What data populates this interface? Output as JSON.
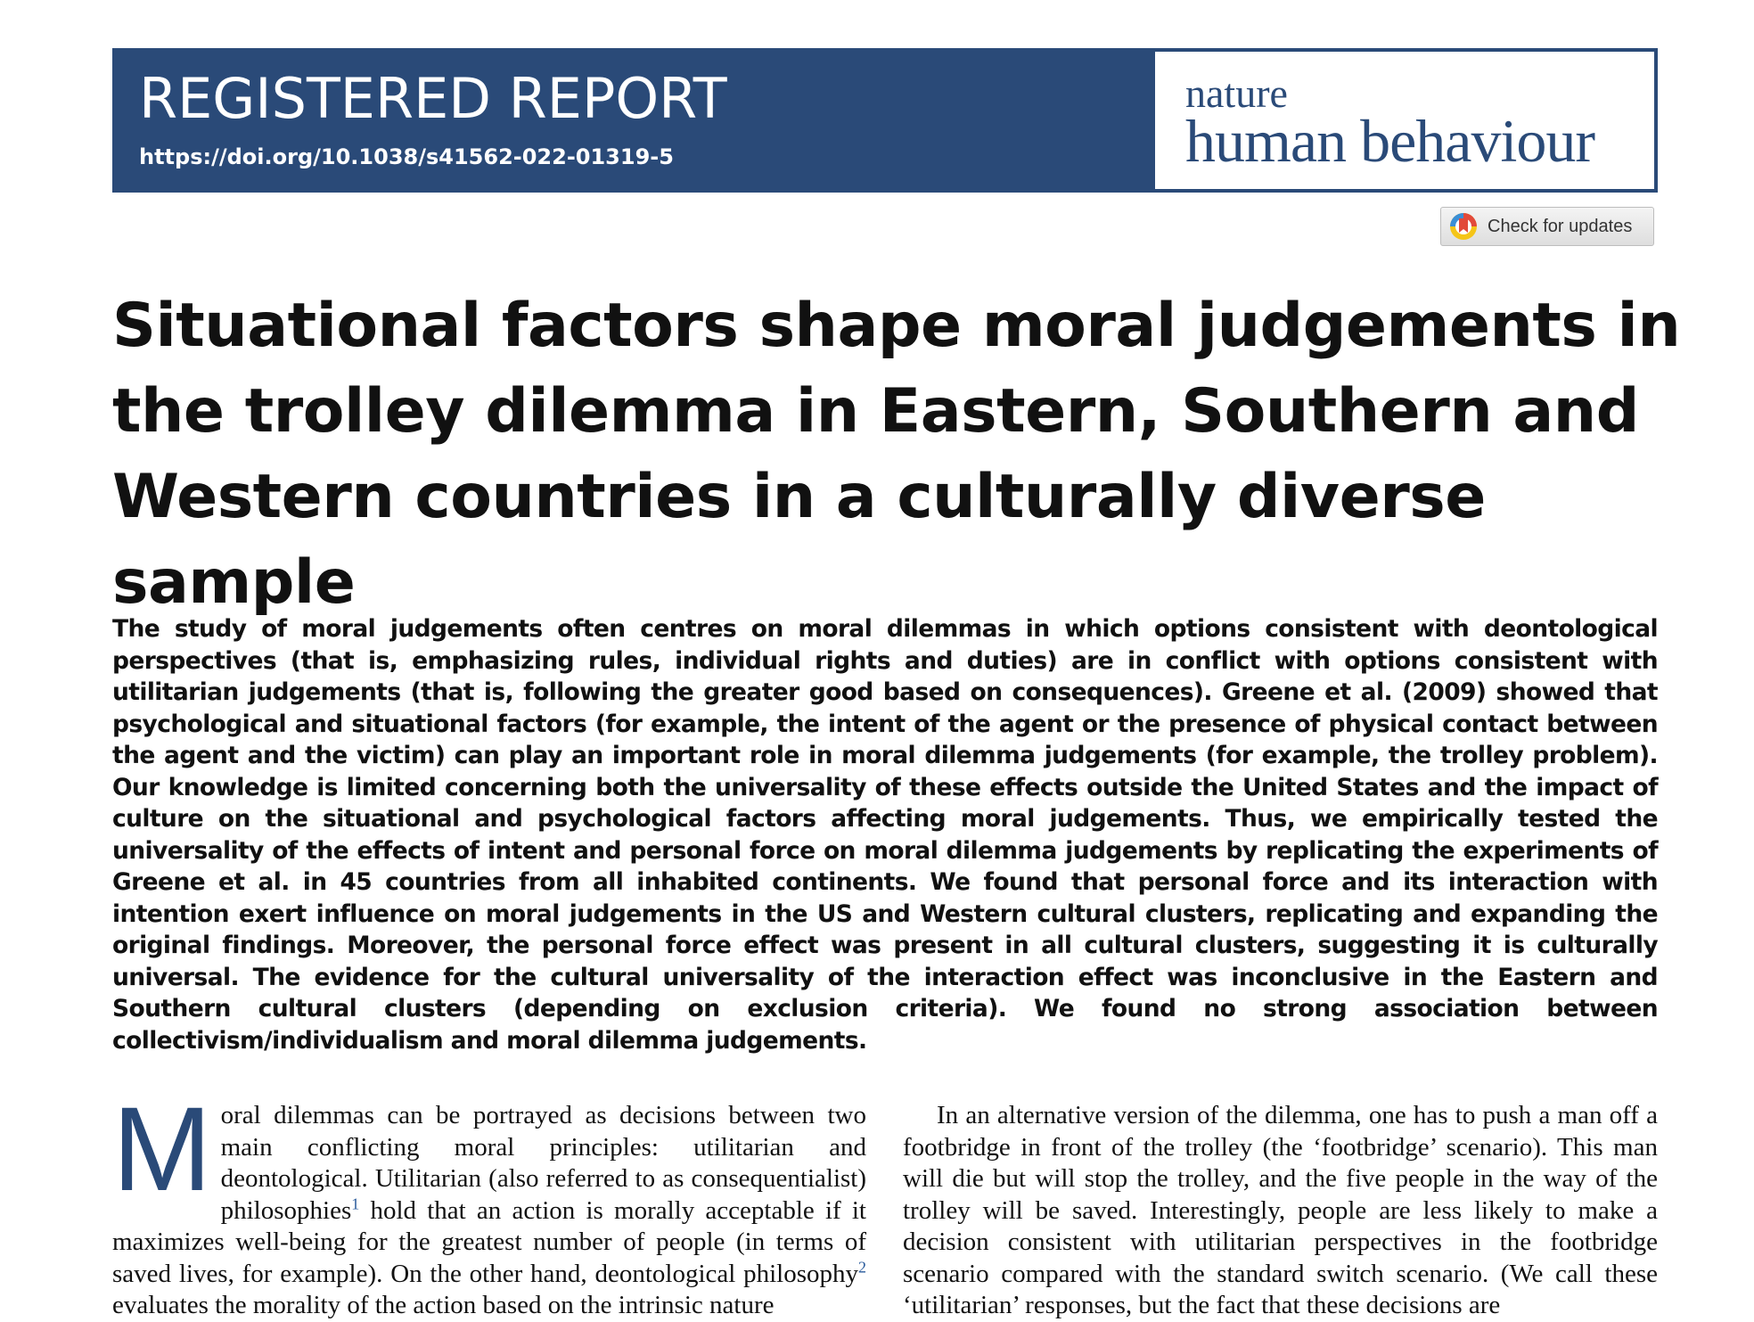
{
  "header": {
    "article_type": "REGISTERED REPORT",
    "doi": "https://doi.org/10.1038/s41562-022-01319-5",
    "journal_line1": "nature",
    "journal_line2": "human behaviour",
    "brand_color": "#2a4a78"
  },
  "updates_button": {
    "label": "Check for updates",
    "icon": "crossmark-icon"
  },
  "article": {
    "title": "Situational factors shape moral judgements in the trolley dilemma in Eastern, Southern and Western countries in a culturally diverse sample",
    "abstract": "The study of moral judgements often centres on moral dilemmas in which options consistent with deontological perspectives (that is, emphasizing rules, individual rights and duties) are in conflict with options consistent with utilitarian judgements (that is, following the greater good based on consequences). Greene et al. (2009) showed that psychological and situational factors (for example, the intent of the agent or the presence of physical contact between the agent and the victim) can play an important role in moral dilemma judgements (for example, the trolley problem). Our knowledge is limited concerning both the universality of these effects outside the United States and the impact of culture on the situational and psychological factors affecting moral judgements. Thus, we empirically tested the universality of the effects of intent and personal force on moral dilemma judgements by replicating the experiments of Greene et al. in 45 countries from all inhabited continents. We found that personal force and its interaction with intention exert influence on moral judgements in the US and Western cultural clusters, replicating and expanding the original findings. Moreover, the personal force effect was present in all cultural clusters, suggesting it is culturally universal. The evidence for the cultural universality of the interaction effect was inconclusive in the Eastern and Southern cultural clusters (depending on exclusion criteria). We found no strong association between collectivism/individualism and moral dilemma judgements.",
    "left_column": {
      "dropcap": "M",
      "text_a": "oral dilemmas can be portrayed as decisions between two main conflicting moral principles: utilitarian and deontological. Utilitarian (also referred to as consequentialist) philosophies",
      "ref_a": "1",
      "text_b": " hold that an action is morally acceptable if it maximizes well-being for the greatest number of people (in terms of saved lives, for example). On the other hand, deontological philosophy",
      "ref_b": "2",
      "text_c": " evaluates the morality of the action based on the intrinsic nature"
    },
    "right_column": {
      "text": "In an alternative version of the dilemma, one has to push a man off a footbridge in front of the trolley (the ‘footbridge’ scenario). This man will die but will stop the trolley, and the five people in the way of the trolley will be saved. Interestingly, people are less likely to make a decision consistent with utilitarian perspectives in the footbridge scenario compared with the standard switch scenario. (We call these ‘utilitarian’ responses, but the fact that these decisions are"
    }
  }
}
